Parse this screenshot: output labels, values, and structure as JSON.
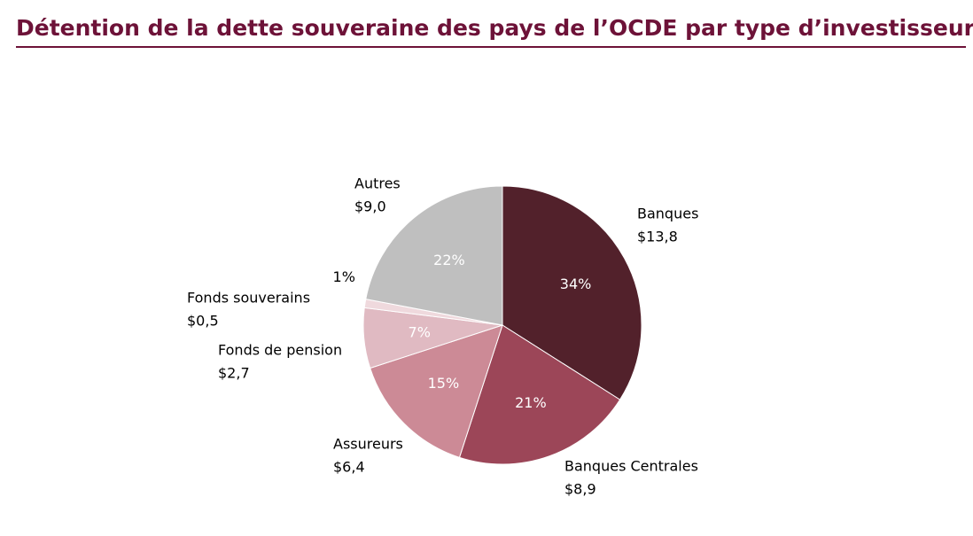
{
  "chart_data": {
    "type": "pie",
    "title": "Détention de la dette souveraine des pays de l’OCDE par type d’investisseurs",
    "categories": [
      "Banques",
      "Banques Centrales",
      "Assureurs",
      "Fonds de pension",
      "Fonds souverains",
      "Autres"
    ],
    "values": [
      34,
      21,
      15,
      7,
      1,
      22
    ],
    "value_labels": [
      "34%",
      "21%",
      "15%",
      "7%",
      "1%",
      "22%"
    ],
    "amounts": [
      "$13,8",
      "$8,9",
      "$6,4",
      "$2,7",
      "$0,5",
      "$9,0"
    ],
    "colors": [
      "#52212b",
      "#9c4658",
      "#cc8a96",
      "#e0bac2",
      "#efd9dd",
      "#bfbfbf"
    ]
  }
}
